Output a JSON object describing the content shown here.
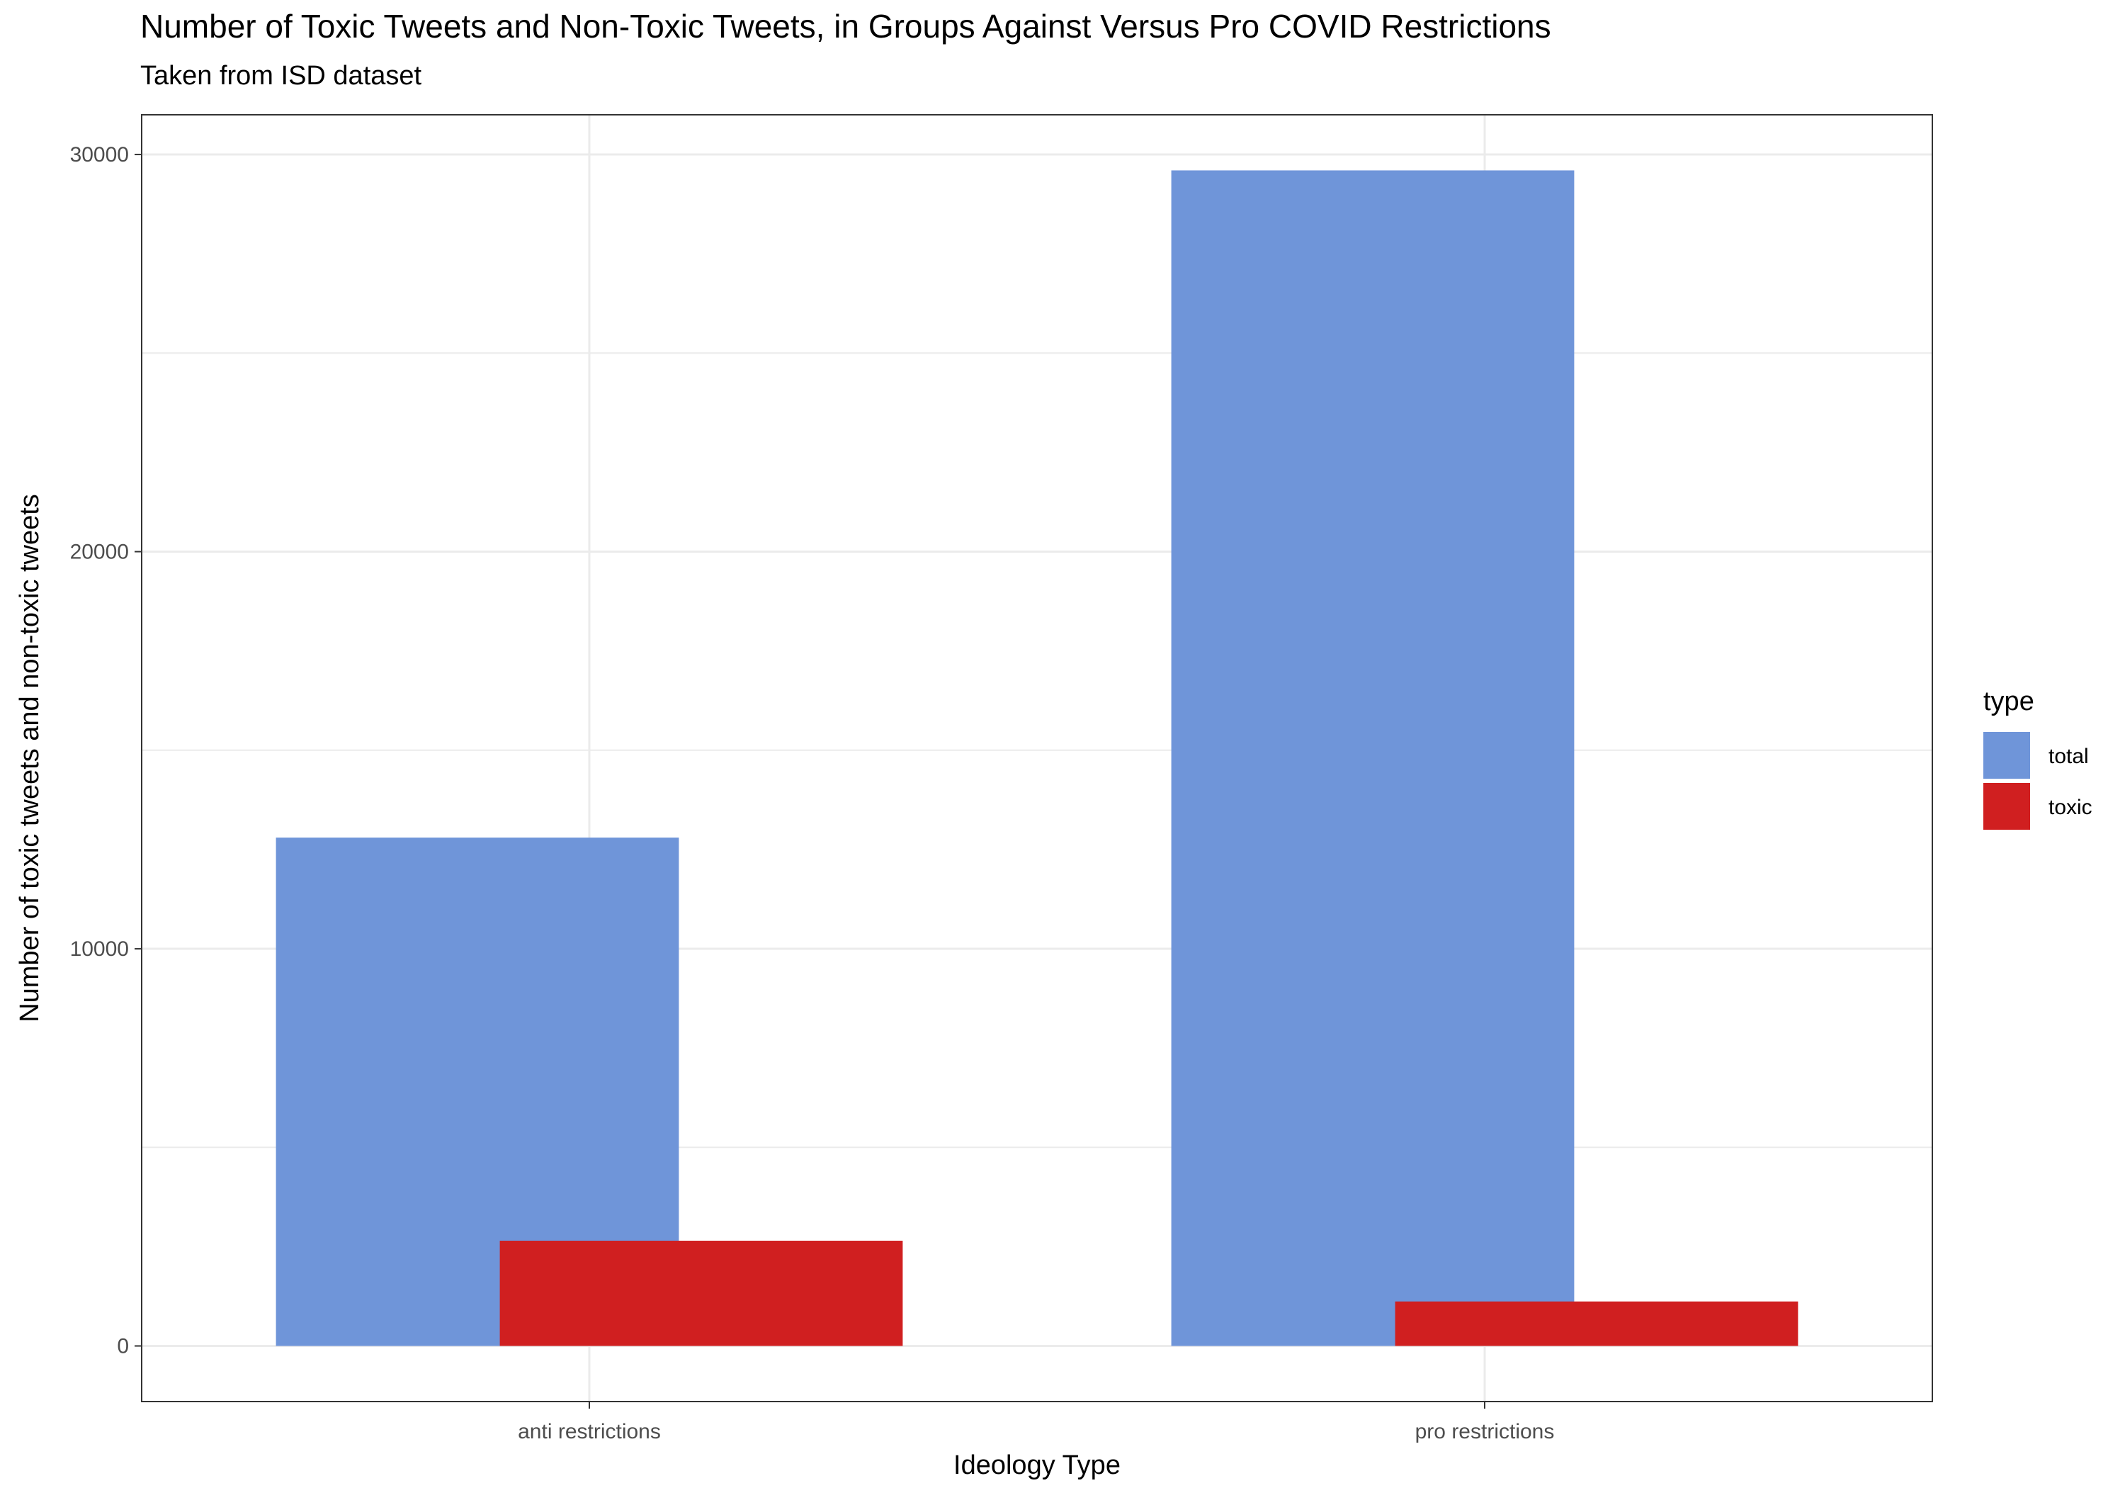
{
  "chart_data": {
    "type": "bar",
    "title": "Number of Toxic Tweets and Non-Toxic Tweets, in Groups Against Versus Pro COVID Restrictions",
    "subtitle": "Taken from ISD dataset",
    "xlabel": "Ideology Type",
    "ylabel": "Number of toxic tweets and non-toxic tweets",
    "categories": [
      "anti restrictions",
      "pro restrictions"
    ],
    "series": [
      {
        "name": "total",
        "values": [
          12800,
          29600
        ],
        "color": "#6f95d9"
      },
      {
        "name": "toxic",
        "values": [
          2650,
          1120
        ],
        "color": "#d01f20"
      }
    ],
    "ylim": [
      -1400,
      31000
    ],
    "yticks": [
      0,
      10000,
      20000,
      30000
    ],
    "ytick_labels": [
      "0",
      "10000",
      "20000",
      "30000"
    ],
    "grid": true,
    "legend": {
      "title": "type",
      "position": "right"
    }
  }
}
